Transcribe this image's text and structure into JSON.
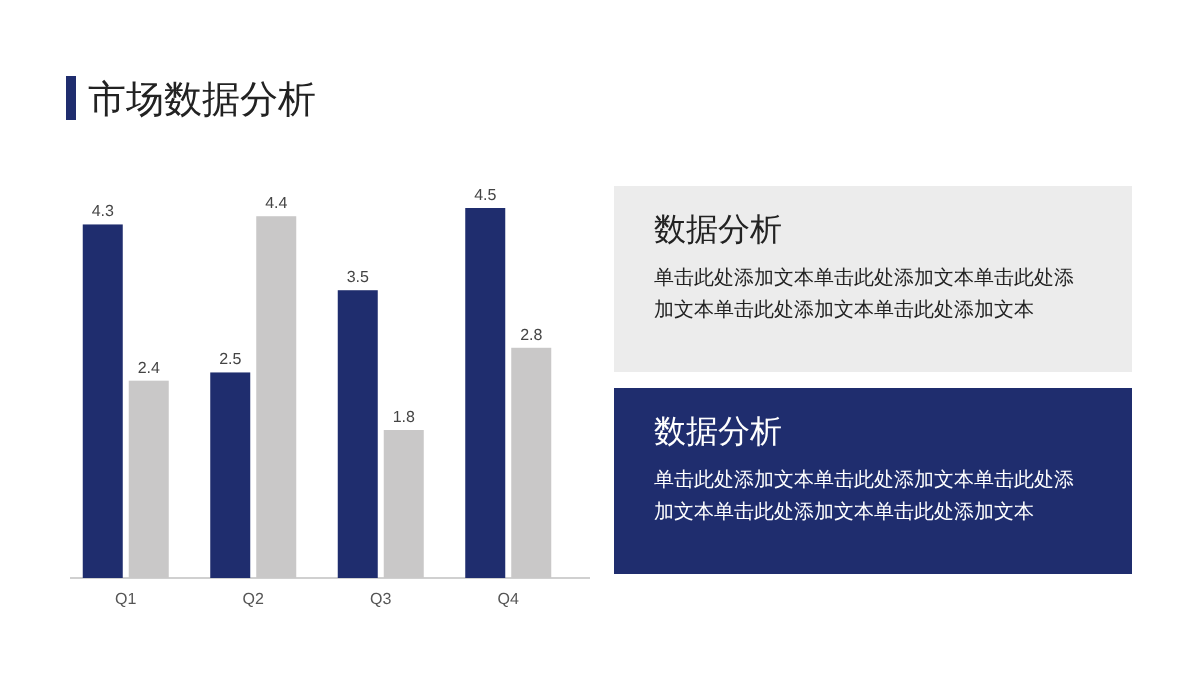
{
  "chart_data": [
    {
      "type": "bar",
      "title": "市场数据分析",
      "categories": [
        "Q1",
        "Q2",
        "Q3",
        "Q4"
      ],
      "data_labels": true,
      "series": [
        {
          "color": "#1f2d6e",
          "values": [
            4.3,
            2.5,
            3.5,
            4.5
          ]
        },
        {
          "color": "#c9c8c8",
          "values": [
            2.4,
            4.4,
            1.8,
            2.8
          ]
        }
      ]
    },
    {
      "type": "other",
      "annotations": [
        "数据分析",
        "单击此处添加文本单击此处添加文本单击此处添加文本单击此处添加文本单击此处添加文本",
        "数据分析",
        "单击此处添加文本单击此处添加文本单击此处添加文本单击此处添加文本单击此处添加文本"
      ]
    }
  ]
}
